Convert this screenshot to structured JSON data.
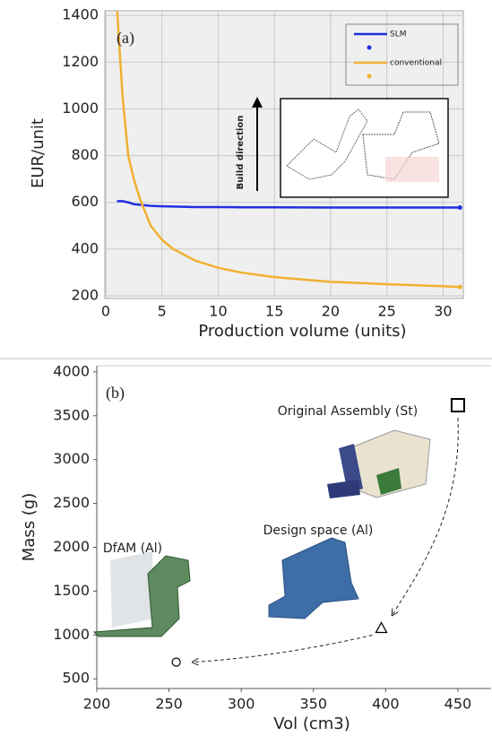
{
  "chart_data": [
    {
      "type": "line",
      "annotations": [
        "(a)",
        "Build direction"
      ],
      "x_label": "Production volume (units)",
      "y_label": "EUR/unit",
      "x": [
        1,
        1.5,
        2,
        2.5,
        3,
        4,
        5,
        6,
        8,
        10,
        12,
        15,
        20,
        25,
        31.5
      ],
      "series": [
        {
          "name": "SLM",
          "color": "#1f2fe0",
          "values": [
            605,
            605,
            600,
            592,
            590,
            585,
            583,
            582,
            580,
            580,
            579,
            579,
            578,
            578,
            578
          ]
        },
        {
          "name": "conventional",
          "color": "#f0b030",
          "values": [
            1430,
            1050,
            800,
            700,
            620,
            500,
            440,
            400,
            350,
            320,
            300,
            280,
            260,
            250,
            238
          ]
        }
      ],
      "xlim": [
        0,
        31.8
      ],
      "ylim": [
        200,
        1420
      ],
      "xticks": [
        0,
        5,
        10,
        15,
        20,
        25,
        30
      ],
      "yticks": [
        200,
        400,
        600,
        800,
        1000,
        1200,
        1400
      ],
      "grid": true,
      "legend": "upper right"
    },
    {
      "type": "scatter",
      "annotations": [
        "(b)",
        "Original Assembly (St)",
        "Design space (Al)",
        "DfAM (Al)"
      ],
      "x_label": "Vol (cm3)",
      "y_label": "Mass (g)",
      "x": [
        450,
        397,
        255
      ],
      "values": [
        3620,
        1080,
        690
      ],
      "markers": [
        "square",
        "triangle",
        "circle"
      ],
      "color": "#000000",
      "xlim": [
        200,
        473
      ],
      "ylim": [
        390,
        4070
      ],
      "xticks": [
        200,
        250,
        300,
        350,
        400,
        450
      ],
      "yticks": [
        500,
        1000,
        1500,
        2000,
        2500,
        3000,
        3500,
        4000
      ],
      "grid": false
    }
  ]
}
